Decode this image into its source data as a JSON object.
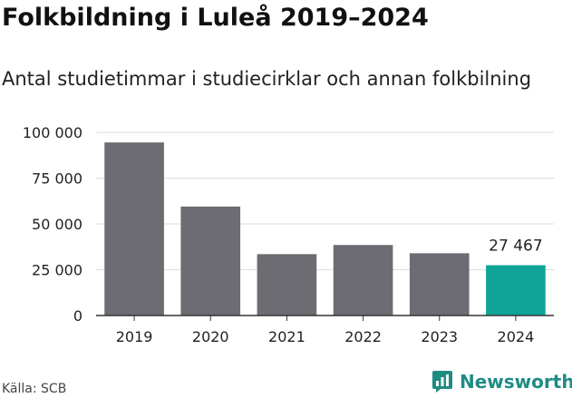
{
  "header": {
    "title": "Folkbildning i Luleå 2019–2024",
    "subtitle": "Antal studietimmar i studiecirklar och annan folkbilning"
  },
  "footer": {
    "source": "Källa: SCB",
    "brand": "Newsworthy"
  },
  "colors": {
    "bar": "#6d6c72",
    "highlight": "#0fa497",
    "brand": "#1f8c84"
  },
  "chart_data": {
    "type": "bar",
    "title": "Folkbildning i Luleå 2019–2024",
    "subtitle": "Antal studietimmar i studiecirklar och annan folkbilning",
    "categories": [
      "2019",
      "2020",
      "2021",
      "2022",
      "2023",
      "2024"
    ],
    "values": [
      94500,
      59500,
      33500,
      38500,
      34000,
      27467
    ],
    "highlight_index": 5,
    "data_labels": [
      {
        "index": 5,
        "text": "27 467"
      }
    ],
    "ylim": [
      0,
      100000
    ],
    "yticks": [
      0,
      25000,
      50000,
      75000,
      100000
    ],
    "ytick_labels": [
      "0",
      "25 000",
      "50 000",
      "75 000",
      "100 000"
    ],
    "grid": true,
    "legend": "none"
  }
}
